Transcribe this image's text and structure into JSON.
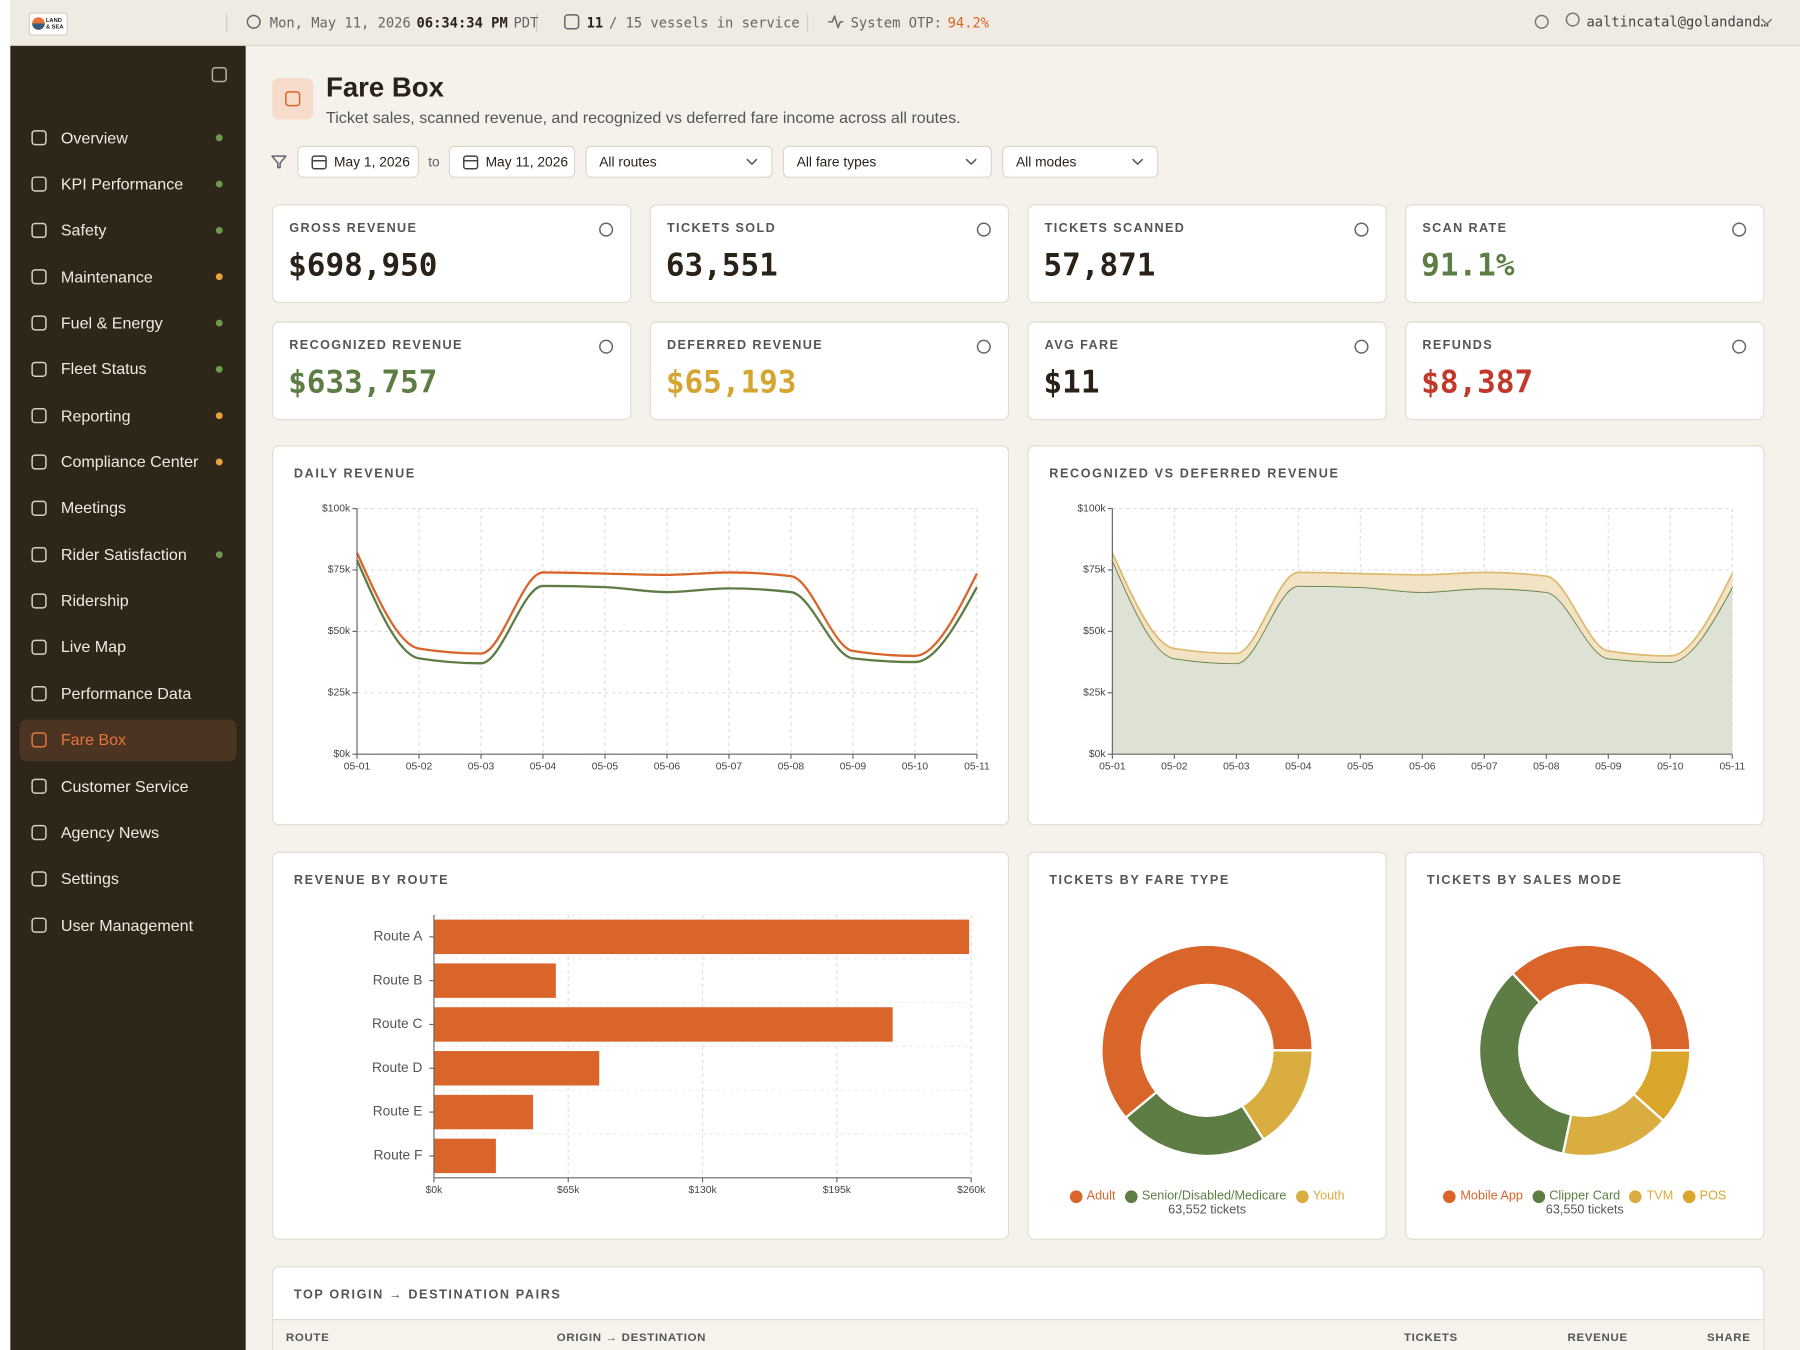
{
  "topbar": {
    "logo": "LAND & SEA",
    "date": "Mon, May 11, 2026",
    "time": "06:34:34 PM",
    "timezone": "PDT",
    "vessels_in_service": "11",
    "vessels_text": "/ 15 vessels in service",
    "otp_label": "System OTP:",
    "otp_value": "94.2%",
    "user": "aaltincatal@golandand…"
  },
  "sidebar": {
    "items": [
      {
        "label": "Overview",
        "dot": "#6b9a4b"
      },
      {
        "label": "KPI Performance",
        "dot": "#6b9a4b"
      },
      {
        "label": "Safety",
        "dot": "#6b9a4b"
      },
      {
        "label": "Maintenance",
        "dot": "#e8a23a"
      },
      {
        "label": "Fuel & Energy",
        "dot": "#6b9a4b"
      },
      {
        "label": "Fleet Status",
        "dot": "#6b9a4b"
      },
      {
        "label": "Reporting",
        "dot": "#e8a23a"
      },
      {
        "label": "Compliance Center",
        "dot": "#e8a23a"
      },
      {
        "label": "Meetings"
      },
      {
        "label": "Rider Satisfaction",
        "dot": "#6b9a4b"
      },
      {
        "label": "Ridership"
      },
      {
        "label": "Live Map"
      },
      {
        "label": "Performance Data"
      },
      {
        "label": "Fare Box",
        "active": true
      },
      {
        "label": "Customer Service"
      },
      {
        "label": "Agency News"
      },
      {
        "label": "Settings"
      },
      {
        "label": "User Management"
      }
    ]
  },
  "header": {
    "title": "Fare Box",
    "subtitle": "Ticket sales, scanned revenue, and recognized vs deferred fare income across all routes."
  },
  "filters": {
    "from": "May 1, 2026",
    "to_label": "to",
    "to": "May 11, 2026",
    "selects": [
      "All routes",
      "All fare types",
      "All modes"
    ]
  },
  "kpis": [
    {
      "label": "GROSS REVENUE",
      "value": "$698,950",
      "color": "#2a2118"
    },
    {
      "label": "TICKETS SOLD",
      "value": "63,551",
      "color": "#2a2118"
    },
    {
      "label": "TICKETS SCANNED",
      "value": "57,871",
      "color": "#2a2118"
    },
    {
      "label": "SCAN RATE",
      "value": "91.1%",
      "color": "#5e7d45"
    },
    {
      "label": "RECOGNIZED REVENUE",
      "value": "$633,757",
      "color": "#5e7d45"
    },
    {
      "label": "DEFERRED REVENUE",
      "value": "$65,193",
      "color": "#d4a531"
    },
    {
      "label": "AVG FARE",
      "value": "$11",
      "color": "#2a2118"
    },
    {
      "label": "REFUNDS",
      "value": "$8,387",
      "color": "#c0392b"
    }
  ],
  "chart_data": [
    {
      "type": "line",
      "title": "DAILY REVENUE",
      "x": [
        "05-01",
        "05-02",
        "05-03",
        "05-04",
        "05-05",
        "05-06",
        "05-07",
        "05-08",
        "05-09",
        "05-10",
        "05-11"
      ],
      "series": [
        {
          "color": "#d9652b",
          "values": [
            82000,
            43000,
            41000,
            74000,
            73500,
            73000,
            74000,
            72500,
            42000,
            40000,
            73500
          ]
        },
        {
          "color": "#5e7d45",
          "values": [
            79000,
            39000,
            37000,
            68500,
            68000,
            66000,
            67500,
            66000,
            39000,
            37500,
            68000
          ]
        }
      ],
      "ylim": [
        0,
        100000
      ],
      "yticks": [
        {
          "value": 0,
          "label": "$0k"
        },
        {
          "value": 25000,
          "label": "$25k"
        },
        {
          "value": 50000,
          "label": "$50k"
        },
        {
          "value": 75000,
          "label": "$75k"
        },
        {
          "value": 100000,
          "label": "$100k"
        }
      ],
      "grid": true
    },
    {
      "type": "area",
      "title": "RECOGNIZED VS DEFERRED REVENUE",
      "stacked": true,
      "x": [
        "05-01",
        "05-02",
        "05-03",
        "05-04",
        "05-05",
        "05-06",
        "05-07",
        "05-08",
        "05-09",
        "05-10",
        "05-11"
      ],
      "series": [
        {
          "color": "#5e7d45",
          "fill": "#dce0d3",
          "values": [
            79000,
            39000,
            37000,
            68500,
            68000,
            66000,
            67500,
            66000,
            39000,
            37500,
            68000
          ]
        },
        {
          "color": "#dcb96e",
          "fill": "#f2e2c2",
          "values": [
            3000,
            4000,
            4000,
            5500,
            5500,
            7000,
            6500,
            6500,
            3000,
            2500,
            5500
          ]
        }
      ],
      "ylim": [
        0,
        100000
      ],
      "yticks": [
        {
          "value": 0,
          "label": "$0k"
        },
        {
          "value": 25000,
          "label": "$25k"
        },
        {
          "value": 50000,
          "label": "$50k"
        },
        {
          "value": 75000,
          "label": "$75k"
        },
        {
          "value": 100000,
          "label": "$100k"
        }
      ],
      "grid": true
    },
    {
      "type": "bar",
      "orientation": "horizontal",
      "title": "REVENUE BY ROUTE",
      "categories": [
        "Route A",
        "Route B",
        "Route C",
        "Route D",
        "Route E",
        "Route F"
      ],
      "values": [
        259000,
        59000,
        222000,
        80000,
        48000,
        30000
      ],
      "color": "#d9652b",
      "xlim": [
        0,
        260000
      ],
      "xticks": [
        {
          "value": 0,
          "label": "$0k"
        },
        {
          "value": 65000,
          "label": "$65k"
        },
        {
          "value": 130000,
          "label": "$130k"
        },
        {
          "value": 195000,
          "label": "$195k"
        },
        {
          "value": 260000,
          "label": "$260k"
        }
      ],
      "grid": true
    },
    {
      "type": "donut",
      "title": "TICKETS BY FARE TYPE",
      "categories": [
        "Adult",
        "Senior/Disabled/Medicare",
        "Youth"
      ],
      "values": [
        38767,
        14617,
        10168
      ],
      "colors": [
        "#d9652b",
        "#5e7d45",
        "#d9ad40"
      ],
      "total_label": "63,552 tickets"
    },
    {
      "type": "donut",
      "title": "TICKETS BY SALES MODE",
      "categories": [
        "Mobile App",
        "Clipper Card",
        "TVM",
        "POS"
      ],
      "values": [
        23514,
        22052,
        10608,
        7376
      ],
      "colors": [
        "#d9652b",
        "#5e7d45",
        "#d9ad40",
        "#d9a52a"
      ],
      "total_label": "63,550 tickets"
    }
  ],
  "table": {
    "title": "TOP ORIGIN → DESTINATION PAIRS",
    "columns": [
      "ROUTE",
      "ORIGIN → DESTINATION",
      "TICKETS",
      "REVENUE",
      "SHARE"
    ]
  }
}
